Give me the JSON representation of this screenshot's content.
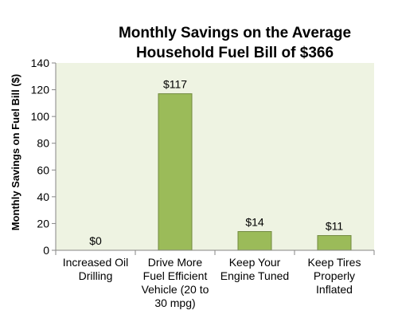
{
  "chart_data": {
    "type": "bar",
    "title_lines": [
      "Monthly Savings on the Average",
      "Household Fuel Bill of $366"
    ],
    "ylabel": "Monthly Savings on Fuel Bill ($)",
    "xlabel": "",
    "ylim": [
      0,
      140
    ],
    "yticks": [
      0,
      20,
      40,
      60,
      80,
      100,
      120,
      140
    ],
    "grid": false,
    "legend": "none",
    "categories": [
      [
        "Increased Oil",
        "Drilling"
      ],
      [
        "Drive More",
        "Fuel Efficient",
        "Vehicle (20 to",
        "30 mpg)"
      ],
      [
        "Keep Your",
        "Engine Tuned"
      ],
      [
        "Keep Tires",
        "Properly",
        "Inflated"
      ]
    ],
    "values": [
      0,
      117,
      14,
      11
    ],
    "data_labels": [
      "$0",
      "$117",
      "$14",
      "$11"
    ],
    "colors": {
      "plot_background": "#eef3e2",
      "bar_fill": "#9bbb59",
      "bar_stroke": "#71893f",
      "axis": "#868686"
    }
  }
}
